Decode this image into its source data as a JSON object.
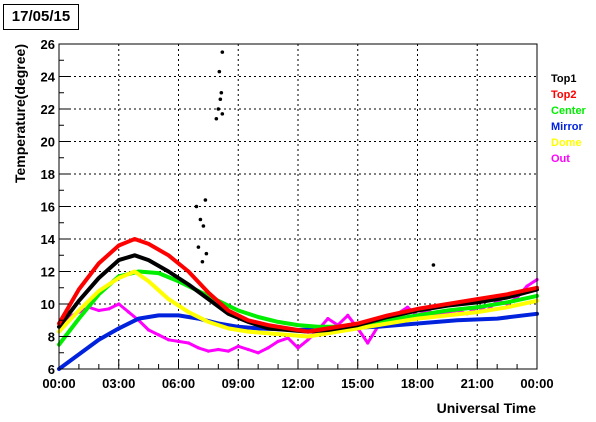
{
  "title": "17/05/15",
  "colors": {
    "Top1": "#000000",
    "Top2": "#ff0000",
    "Center": "#00ee00",
    "Mirror": "#0022dd",
    "Dome": "#ffff00",
    "Out": "#ff00ff"
  },
  "chart_data": {
    "type": "line",
    "title": "17/05/15",
    "xlabel": "Universal Time",
    "ylabel": "Temperature(degree)",
    "xlim": [
      0,
      24
    ],
    "ylim": [
      6,
      26
    ],
    "grid": true,
    "legend_placement": "right",
    "x_ticks": [
      "00:00",
      "03:00",
      "06:00",
      "09:00",
      "12:00",
      "15:00",
      "18:00",
      "21:00",
      "00:00"
    ],
    "y_ticks": [
      "6",
      "8",
      "10",
      "12",
      "14",
      "16",
      "18",
      "20",
      "22",
      "24",
      "26"
    ],
    "series": [
      {
        "name": "Top1",
        "x": [
          0,
          1,
          2,
          3,
          3.8,
          4.5,
          5.5,
          6.5,
          7.5,
          8.5,
          9.5,
          10.5,
          11.5,
          12.5,
          13.5,
          15,
          16.5,
          18,
          19.5,
          21,
          22.5,
          24
        ],
        "values": [
          8.6,
          10.2,
          11.6,
          12.7,
          13.0,
          12.7,
          12.0,
          11.2,
          10.3,
          9.4,
          8.9,
          8.5,
          8.4,
          8.3,
          8.4,
          8.7,
          9.2,
          9.6,
          9.9,
          10.1,
          10.4,
          10.9
        ],
        "outliers_x": [
          6.9,
          7.0,
          7.1,
          7.2,
          7.25,
          7.35,
          7.4,
          7.9,
          8.0,
          8.05,
          8.1,
          8.2,
          8.15,
          8.2,
          18.8
        ],
        "outliers_y": [
          16.0,
          13.5,
          15.2,
          12.6,
          14.8,
          16.4,
          13.1,
          21.4,
          22.0,
          24.3,
          22.6,
          25.5,
          23.0,
          21.7,
          12.4
        ]
      },
      {
        "name": "Top2",
        "x": [
          0,
          1,
          2,
          3,
          3.8,
          4.5,
          5.5,
          6.5,
          7.5,
          8.5,
          9.5,
          10.5,
          11.5,
          12.5,
          13.5,
          15,
          16.5,
          18,
          19.5,
          21,
          22.5,
          24
        ],
        "values": [
          8.8,
          10.9,
          12.5,
          13.6,
          14.0,
          13.7,
          13.0,
          12.0,
          10.7,
          9.6,
          9.0,
          8.7,
          8.5,
          8.3,
          8.5,
          8.8,
          9.3,
          9.7,
          10.0,
          10.3,
          10.6,
          11.0
        ]
      },
      {
        "name": "Center",
        "x": [
          0,
          1,
          2,
          3,
          4,
          5,
          6,
          7,
          8,
          9,
          10,
          11,
          12,
          13,
          14,
          15,
          16.5,
          18,
          19.5,
          21,
          22.5,
          24
        ],
        "values": [
          7.5,
          9.1,
          10.6,
          11.7,
          12.0,
          11.9,
          11.4,
          10.8,
          10.2,
          9.6,
          9.2,
          8.9,
          8.7,
          8.6,
          8.6,
          8.7,
          9.0,
          9.3,
          9.6,
          9.8,
          10.1,
          10.5
        ]
      },
      {
        "name": "Mirror",
        "x": [
          0,
          1,
          2,
          3,
          4,
          5,
          6,
          7,
          8,
          9,
          10,
          12,
          14,
          16,
          18,
          20,
          22,
          24
        ],
        "values": [
          6.0,
          6.9,
          7.8,
          8.5,
          9.1,
          9.3,
          9.3,
          9.1,
          8.8,
          8.6,
          8.5,
          8.4,
          8.5,
          8.6,
          8.8,
          9.0,
          9.1,
          9.4
        ]
      },
      {
        "name": "Dome",
        "x": [
          0,
          1,
          2,
          3,
          3.8,
          4.5,
          5.5,
          6.5,
          7.5,
          8.5,
          9.5,
          10.5,
          11.5,
          12.5,
          13.5,
          15,
          16.5,
          18,
          19.5,
          21,
          22.5,
          24
        ],
        "values": [
          8.3,
          9.6,
          10.8,
          11.6,
          12.0,
          11.4,
          10.3,
          9.5,
          8.9,
          8.5,
          8.3,
          8.2,
          8.1,
          8.0,
          8.2,
          8.5,
          8.8,
          9.1,
          9.3,
          9.5,
          9.8,
          10.2
        ]
      },
      {
        "name": "Out",
        "x": [
          0,
          0.5,
          1,
          1.5,
          2,
          2.5,
          3,
          3.5,
          4,
          4.5,
          5,
          5.5,
          6,
          6.5,
          7,
          7.5,
          8,
          8.5,
          9,
          9.5,
          10,
          10.5,
          11,
          11.5,
          12,
          12.5,
          13,
          13.5,
          14,
          14.5,
          15,
          15.5,
          16,
          16.5,
          17,
          17.5,
          18,
          18.5,
          19,
          19.5,
          20,
          20.5,
          21,
          21.5,
          22,
          22.5,
          23,
          23.5,
          24
        ],
        "values": [
          8.6,
          9.2,
          9.5,
          9.8,
          9.6,
          9.7,
          10.0,
          9.5,
          9.0,
          8.4,
          8.1,
          7.8,
          7.7,
          7.6,
          7.3,
          7.1,
          7.2,
          7.1,
          7.4,
          7.2,
          7.0,
          7.3,
          7.7,
          7.9,
          7.3,
          7.8,
          8.4,
          9.1,
          8.7,
          9.3,
          8.5,
          7.6,
          8.6,
          9.1,
          9.4,
          9.8,
          9.3,
          9.6,
          9.3,
          9.5,
          9.6,
          9.4,
          9.8,
          9.6,
          10.2,
          10.0,
          10.4,
          11.1,
          11.5
        ]
      }
    ]
  }
}
